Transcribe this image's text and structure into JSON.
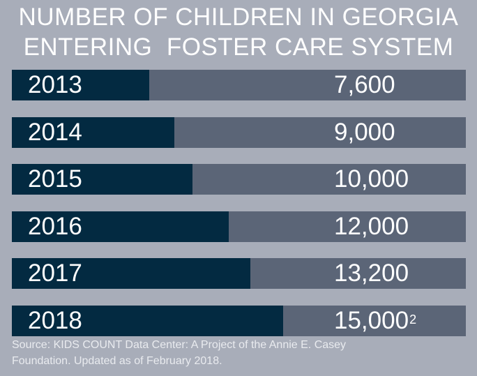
{
  "chart_data": {
    "type": "bar",
    "orientation": "horizontal",
    "title_lines": [
      "NUMBER OF CHILDREN IN GEORGIA",
      "ENTERING  FOSTER CARE SYSTEM"
    ],
    "categories": [
      "2013",
      "2014",
      "2015",
      "2016",
      "2017",
      "2018"
    ],
    "values": [
      7600,
      9000,
      10000,
      12000,
      13200,
      15000
    ],
    "value_labels": [
      "7,600",
      "9,000",
      "10,000",
      "12,000",
      "13,200",
      "15,000"
    ],
    "value_footnotes": [
      "",
      "",
      "",
      "",
      "",
      "2"
    ],
    "source_lines": [
      "Source: KIDS COUNT Data Center: A Project of the Annie E. Casey",
      "Foundation. Updated as of February 2018."
    ],
    "colors": {
      "background": "#a8adb9",
      "bar_fill": "#032a41",
      "bar_track": "#5b6577",
      "text": "#ffffff"
    }
  }
}
